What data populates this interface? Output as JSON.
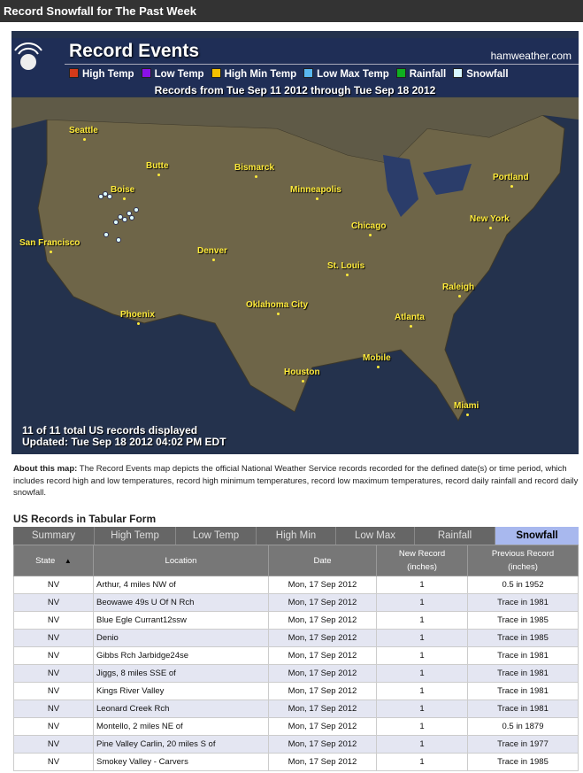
{
  "title": "Record Snowfall for The Past Week",
  "map": {
    "heading": "Record Events",
    "site": "hamweather.com",
    "legend": [
      {
        "label": "High Temp",
        "color": "#d43a1a"
      },
      {
        "label": "Low Temp",
        "color": "#8a10e8"
      },
      {
        "label": "High Min Temp",
        "color": "#f5c000"
      },
      {
        "label": "Low Max Temp",
        "color": "#5ab8f0"
      },
      {
        "label": "Rainfall",
        "color": "#10b020"
      },
      {
        "label": "Snowfall",
        "color": "#d8f8ff"
      }
    ],
    "range": "Records from Tue Sep 11 2012 through Tue Sep 18 2012",
    "cities": [
      "Seattle",
      "Butte",
      "Bismarck",
      "Minneapolis",
      "Portland",
      "Boise",
      "Chicago",
      "New York",
      "San Francisco",
      "Denver",
      "St. Louis",
      "Raleigh",
      "Oklahoma City",
      "Phoenix",
      "Atlanta",
      "Mobile",
      "Houston",
      "Miami"
    ],
    "count_text": "11 of 11 total US records displayed",
    "updated": "Updated: Tue Sep 18 2012 04:02 PM EDT"
  },
  "about": {
    "label": "About this map:",
    "text": " The Record Events map depicts the official National Weather Service records recorded for the defined date(s) or time period, which includes record high and low temperatures, record high minimum temperatures, record low maximum temperatures, record daily rainfall and record daily snowfall."
  },
  "table": {
    "heading": "US Records in Tabular Form",
    "tabs": [
      "Summary",
      "High Temp",
      "Low Temp",
      "High Min",
      "Low Max",
      "Rainfall",
      "Snowfall"
    ],
    "active_tab": "Snowfall",
    "columns": [
      "State",
      "Location",
      "Date",
      "New Record",
      "Previous Record"
    ],
    "units": [
      "",
      "",
      "",
      "(inches)",
      "(inches)"
    ],
    "sort_indicator": "▲",
    "rows": [
      [
        "NV",
        "Arthur, 4 miles NW of",
        "Mon, 17 Sep 2012",
        "1",
        "0.5 in 1952"
      ],
      [
        "NV",
        "Beowawe 49s U Of N Rch",
        "Mon, 17 Sep 2012",
        "1",
        "Trace in 1981"
      ],
      [
        "NV",
        "Blue Egle Currant12ssw",
        "Mon, 17 Sep 2012",
        "1",
        "Trace in 1985"
      ],
      [
        "NV",
        "Denio",
        "Mon, 17 Sep 2012",
        "1",
        "Trace in 1985"
      ],
      [
        "NV",
        "Gibbs Rch Jarbidge24se",
        "Mon, 17 Sep 2012",
        "1",
        "Trace in 1981"
      ],
      [
        "NV",
        "Jiggs, 8 miles SSE of",
        "Mon, 17 Sep 2012",
        "1",
        "Trace in 1981"
      ],
      [
        "NV",
        "Kings River Valley",
        "Mon, 17 Sep 2012",
        "1",
        "Trace in 1981"
      ],
      [
        "NV",
        "Leonard Creek Rch",
        "Mon, 17 Sep 2012",
        "1",
        "Trace in 1981"
      ],
      [
        "NV",
        "Montello, 2 miles NE of",
        "Mon, 17 Sep 2012",
        "1",
        "0.5 in 1879"
      ],
      [
        "NV",
        "Pine Valley Carlin, 20 miles S of",
        "Mon, 17 Sep 2012",
        "1",
        "Trace in 1977"
      ],
      [
        "NV",
        "Smokey Valley - Carvers",
        "Mon, 17 Sep 2012",
        "1",
        "Trace in 1985"
      ]
    ]
  }
}
